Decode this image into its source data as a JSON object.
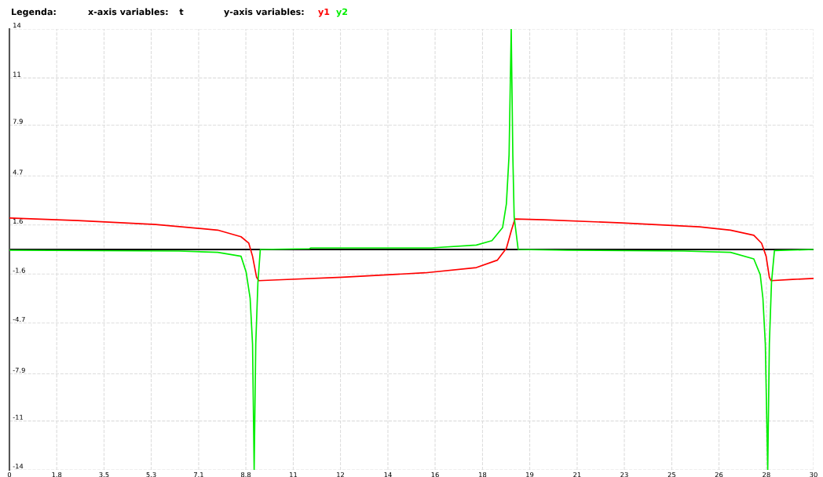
{
  "chart_data": {
    "type": "line",
    "xlabel": "t",
    "annotations": [
      "Legenda:",
      "x-axis variables:",
      "y-axis variables:"
    ],
    "xlim": [
      0,
      30
    ],
    "ylim": [
      -14,
      14
    ],
    "xticks": [
      0,
      {
        "value": 1.765,
        "label": "1.8"
      },
      {
        "value": 3.53,
        "label": "3.5"
      },
      {
        "value": 5.29,
        "label": "5.3"
      },
      {
        "value": 7.06,
        "label": "7.1"
      },
      {
        "value": 8.82,
        "label": "8.8"
      },
      {
        "value": 10.59,
        "label": "11"
      },
      {
        "value": 12.35,
        "label": "12"
      },
      {
        "value": 14.12,
        "label": "14"
      },
      {
        "value": 15.88,
        "label": "16"
      },
      {
        "value": 17.65,
        "label": "18"
      },
      {
        "value": 19.41,
        "label": "19"
      },
      {
        "value": 21.18,
        "label": "21"
      },
      {
        "value": 22.94,
        "label": "23"
      },
      {
        "value": 24.71,
        "label": "25"
      },
      {
        "value": 26.47,
        "label": "26"
      },
      {
        "value": 28.24,
        "label": "28"
      },
      30
    ],
    "yticks": [
      -14,
      {
        "value": -10.89,
        "label": "-11"
      },
      {
        "value": -7.9,
        "label": "-7.9"
      },
      {
        "value": -4.67,
        "label": "-4.7"
      },
      {
        "value": -1.56,
        "label": "-1.6"
      },
      {
        "value": 1.56,
        "label": "1.6"
      },
      {
        "value": 4.67,
        "label": "4.7"
      },
      {
        "value": 7.9,
        "label": "7.9"
      },
      {
        "value": 10.89,
        "label": "11"
      },
      14
    ],
    "grid": true,
    "legend": "top",
    "ref_lines": [
      {
        "axis": "y",
        "value": 0,
        "color": "#000000"
      }
    ],
    "series": [
      {
        "name": "y1",
        "color": "#ff0000",
        "x": [
          0,
          2.55,
          5.45,
          7.77,
          8.64,
          8.93,
          9.07,
          9.22,
          9.3,
          9.99,
          12.41,
          15.51,
          17.42,
          18.2,
          18.54,
          18.73,
          18.86,
          19.94,
          22.84,
          25.74,
          26.9,
          27.77,
          28.06,
          28.23,
          28.35,
          28.41,
          29.22,
          30
        ],
        "values": [
          2.0,
          1.84,
          1.59,
          1.23,
          0.81,
          0.4,
          -0.43,
          -1.76,
          -1.98,
          -1.93,
          -1.76,
          -1.48,
          -1.15,
          -0.68,
          0.07,
          1.23,
          1.94,
          1.89,
          1.69,
          1.44,
          1.23,
          0.9,
          0.4,
          -0.43,
          -1.76,
          -1.98,
          -1.9,
          -1.84
        ]
      },
      {
        "name": "y2",
        "color": "#00ee00",
        "x": [
          0,
          6.32,
          7.77,
          8.64,
          8.83,
          8.98,
          9.07,
          9.13,
          9.19,
          9.27,
          9.36,
          11.19,
          11.25,
          15.74,
          17.42,
          18.0,
          18.4,
          18.54,
          18.64,
          18.72,
          18.78,
          18.83,
          18.98,
          20.81,
          25.16,
          26.9,
          27.77,
          28.01,
          28.11,
          28.2,
          28.29,
          28.35,
          28.43,
          28.54,
          30
        ],
        "values": [
          -0.05,
          -0.1,
          -0.18,
          -0.43,
          -1.43,
          -3.1,
          -6,
          -14,
          -6,
          -2.1,
          0,
          0.05,
          0.1,
          0.1,
          0.28,
          0.56,
          1.4,
          2.9,
          6,
          14,
          6,
          2.06,
          0,
          -0.05,
          -0.1,
          -0.18,
          -0.6,
          -1.6,
          -3.1,
          -6,
          -14,
          -6,
          -2.1,
          -0.07,
          0
        ]
      }
    ]
  }
}
